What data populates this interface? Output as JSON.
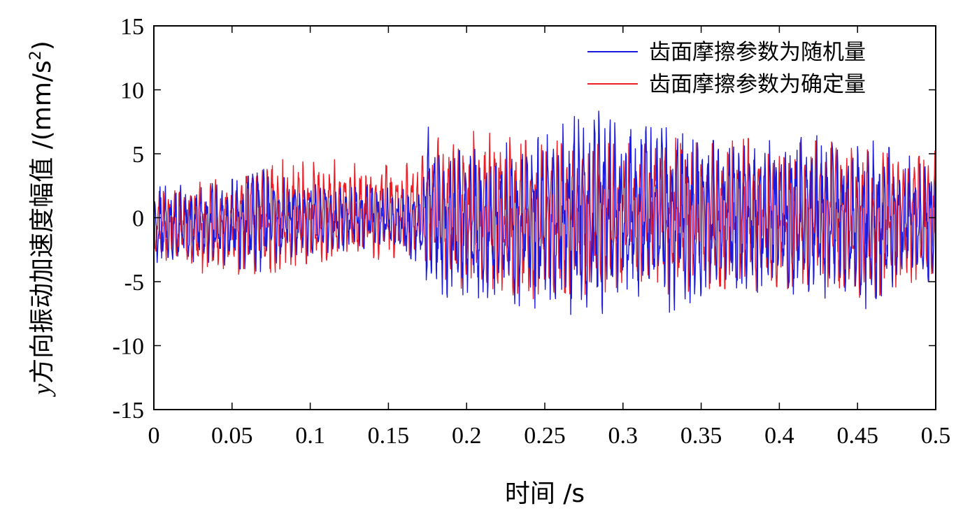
{
  "chart_data": {
    "type": "line",
    "title": "",
    "xlabel": "时间 /s",
    "ylabel": "y方向振动加速度幅值 /(mm/s²)",
    "ylabel_parts": {
      "var": "y",
      "text": "方向振动加速度幅值 /(mm/s",
      "sup": "2",
      "close": ")"
    },
    "xlim": [
      0,
      0.5
    ],
    "ylim": [
      -15,
      15
    ],
    "xticks": [
      0,
      0.05,
      0.1,
      0.15,
      0.2,
      0.25,
      0.3,
      0.35,
      0.4,
      0.45,
      0.5
    ],
    "xtick_labels": [
      "0",
      "0.05",
      "0.1",
      "0.15",
      "0.2",
      "0.25",
      "0.3",
      "0.35",
      "0.4",
      "0.45",
      "0.5"
    ],
    "yticks": [
      -15,
      -10,
      -5,
      0,
      5,
      10,
      15
    ],
    "ytick_labels": [
      "-15",
      "-10",
      "-5",
      "0",
      "5",
      "10",
      "15"
    ],
    "grid": false,
    "legend_position": "top-right",
    "series": [
      {
        "name": "齿面摩擦参数为随机量",
        "color": "#1a1adf",
        "x": [
          0,
          0.01,
          0.02,
          0.03,
          0.04,
          0.05,
          0.06,
          0.065,
          0.07,
          0.08,
          0.09,
          0.1,
          0.11,
          0.12,
          0.13,
          0.14,
          0.15,
          0.16,
          0.17,
          0.172,
          0.174,
          0.18,
          0.19,
          0.2,
          0.21,
          0.22,
          0.23,
          0.24,
          0.25,
          0.26,
          0.27,
          0.28,
          0.285,
          0.29,
          0.3,
          0.31,
          0.32,
          0.33,
          0.34,
          0.35,
          0.36,
          0.37,
          0.38,
          0.39,
          0.4,
          0.41,
          0.42,
          0.43,
          0.44,
          0.45,
          0.46,
          0.47,
          0.48,
          0.49,
          0.5
        ],
        "upper": [
          2.6,
          2.5,
          2.6,
          2.8,
          2.7,
          3.0,
          3.6,
          4.7,
          3.8,
          3.2,
          3.0,
          2.9,
          2.6,
          2.5,
          2.7,
          2.6,
          2.4,
          2.2,
          2.3,
          3.0,
          8.9,
          5.0,
          5.2,
          5.3,
          5.6,
          5.8,
          5.9,
          6.3,
          6.6,
          7.2,
          8.0,
          8.5,
          8.6,
          7.8,
          7.0,
          6.8,
          7.6,
          7.0,
          6.5,
          6.2,
          6.0,
          6.1,
          6.5,
          6.3,
          6.0,
          6.2,
          6.4,
          6.5,
          6.4,
          6.6,
          6.0,
          5.5,
          5.0,
          4.5,
          4.8
        ],
        "lower": [
          -4.0,
          -3.8,
          -3.5,
          -3.4,
          -3.6,
          -3.8,
          -4.2,
          -4.6,
          -4.0,
          -3.5,
          -3.2,
          -3.0,
          -2.8,
          -2.6,
          -2.5,
          -2.3,
          -2.6,
          -3.0,
          -3.5,
          -5.2,
          -5.0,
          -6.0,
          -6.3,
          -6.4,
          -6.6,
          -6.8,
          -6.9,
          -7.0,
          -7.2,
          -7.5,
          -7.6,
          -7.8,
          -7.6,
          -7.3,
          -7.0,
          -6.8,
          -7.2,
          -7.4,
          -6.8,
          -6.3,
          -6.0,
          -6.0,
          -6.2,
          -6.0,
          -5.8,
          -6.0,
          -6.2,
          -6.3,
          -6.2,
          -6.8,
          -7.8,
          -6.0,
          -5.5,
          -5.0,
          -5.0
        ]
      },
      {
        "name": "齿面摩擦参数为确定量",
        "color": "#ee1c25",
        "x": [
          0,
          0.01,
          0.02,
          0.03,
          0.04,
          0.05,
          0.06,
          0.07,
          0.08,
          0.09,
          0.1,
          0.11,
          0.12,
          0.13,
          0.14,
          0.15,
          0.16,
          0.17,
          0.18,
          0.19,
          0.2,
          0.21,
          0.22,
          0.23,
          0.24,
          0.25,
          0.26,
          0.27,
          0.28,
          0.29,
          0.3,
          0.31,
          0.32,
          0.33,
          0.34,
          0.35,
          0.36,
          0.37,
          0.38,
          0.39,
          0.4,
          0.41,
          0.42,
          0.43,
          0.44,
          0.45,
          0.46,
          0.47,
          0.48,
          0.49,
          0.5
        ],
        "upper": [
          2.0,
          2.2,
          2.6,
          2.8,
          3.0,
          3.3,
          4.5,
          4.8,
          4.7,
          4.5,
          4.4,
          4.6,
          4.5,
          4.3,
          4.2,
          4.1,
          4.2,
          4.5,
          6.3,
          6.0,
          6.8,
          6.7,
          6.5,
          6.2,
          6.0,
          6.0,
          6.0,
          6.0,
          5.8,
          5.8,
          6.0,
          5.5,
          6.2,
          6.5,
          6.0,
          5.8,
          5.8,
          6.0,
          6.2,
          6.0,
          5.9,
          5.8,
          6.0,
          6.0,
          5.8,
          5.5,
          5.2,
          5.0,
          5.2,
          5.4,
          5.4
        ],
        "lower": [
          -3.5,
          -3.6,
          -3.8,
          -4.3,
          -4.6,
          -4.5,
          -4.3,
          -4.5,
          -4.2,
          -3.9,
          -3.8,
          -3.7,
          -3.5,
          -3.4,
          -3.3,
          -3.2,
          -3.3,
          -3.6,
          -4.5,
          -5.0,
          -5.8,
          -6.2,
          -6.4,
          -6.5,
          -6.4,
          -6.3,
          -6.2,
          -6.0,
          -6.0,
          -5.8,
          -5.8,
          -5.6,
          -5.8,
          -6.0,
          -5.8,
          -5.6,
          -5.5,
          -5.6,
          -5.8,
          -5.8,
          -5.6,
          -5.5,
          -5.6,
          -5.8,
          -6.0,
          -6.2,
          -6.4,
          -5.6,
          -5.2,
          -4.9,
          -4.9
        ]
      }
    ]
  }
}
